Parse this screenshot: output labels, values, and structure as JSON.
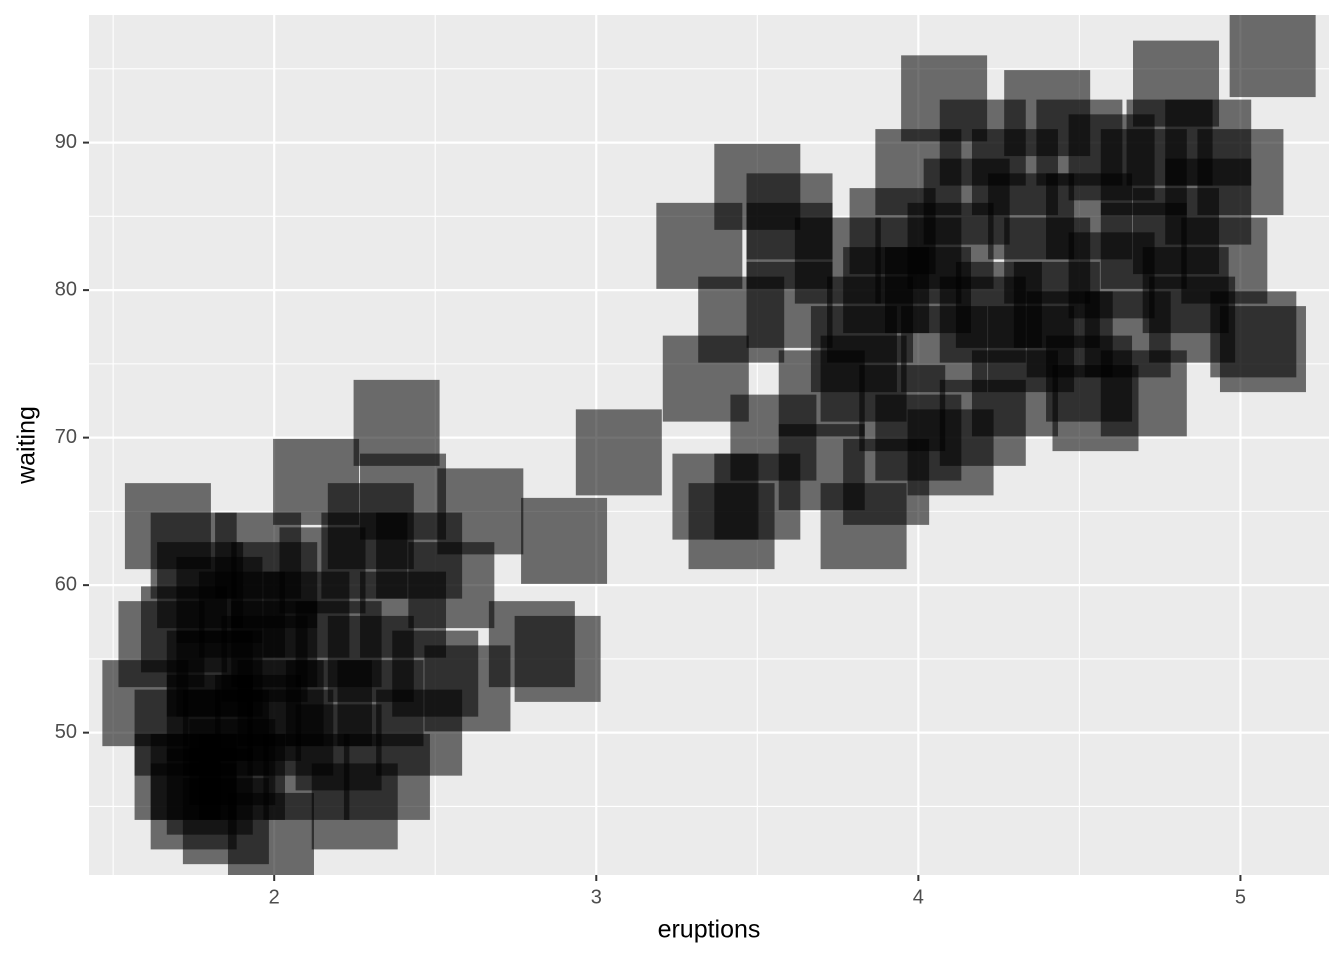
{
  "chart_data": {
    "type": "scatter",
    "x_label": "eruptions",
    "y_label": "waiting",
    "x": [
      1.6,
      1.67,
      1.75,
      1.75,
      1.8,
      1.8,
      1.83,
      1.83,
      1.87,
      1.95,
      1.97,
      2.02,
      2.17,
      2.28,
      1.99,
      2.13,
      2.38,
      2.64,
      2.6,
      1.75,
      1.8,
      1.85,
      1.9,
      1.7,
      1.72,
      1.77,
      1.9,
      2.0,
      2.1,
      2.2,
      2.3,
      2.4,
      2.5,
      2.45,
      2.35,
      2.25,
      2.1,
      2.05,
      2.15,
      2.3,
      2.45,
      2.55,
      1.65,
      1.95,
      2.4,
      2.2,
      1.7,
      2.0,
      1.85,
      2.33,
      3.07,
      2.9,
      2.8,
      2.88,
      3.42,
      3.83,
      3.34,
      3.32,
      3.5,
      3.6,
      3.45,
      3.6,
      3.6,
      3.37,
      3.5,
      3.55,
      3.7,
      3.85,
      3.92,
      4.08,
      4.03,
      3.83,
      4.2,
      4.25,
      4.35,
      4.43,
      4.3,
      4.47,
      4.53,
      4.53,
      4.7,
      4.7,
      4.8,
      4.83,
      4.78,
      4.8,
      5.1,
      4.08,
      4.4,
      5.07,
      5.04,
      4.7,
      4.0,
      4.1,
      4.2,
      3.95,
      4.6,
      4.9,
      5.0,
      4.95,
      4.6,
      4.5,
      4.3,
      4.15,
      4.0,
      3.9,
      3.75,
      3.8,
      4.1,
      4.4,
      4.65,
      4.85,
      4.55,
      4.35,
      4.0,
      4.2,
      4.9,
      3.7,
      3.9
    ],
    "values": [
      52,
      64,
      47,
      62,
      51,
      54,
      54,
      59,
      48,
      51,
      55,
      52,
      52,
      62,
      43,
      67,
      71,
      65,
      53,
      45,
      46,
      44,
      47,
      50,
      57,
      60,
      58,
      60,
      58,
      56,
      55,
      58,
      54,
      50,
      47,
      45,
      47,
      50,
      61,
      64,
      62,
      60,
      56,
      62,
      66,
      49,
      47,
      56,
      50,
      52,
      69,
      63,
      56,
      55,
      64,
      64,
      74,
      83,
      87,
      79,
      78,
      85,
      83,
      66,
      66,
      70,
      73,
      78,
      84,
      76,
      80,
      74,
      78,
      79,
      85,
      79,
      73,
      77,
      85,
      74,
      88,
      83,
      84,
      80,
      90,
      94,
      96,
      93,
      92,
      76,
      77,
      73,
      70,
      69,
      71,
      72,
      81,
      86,
      88,
      82,
      89,
      90,
      88,
      86,
      82,
      80,
      82,
      76,
      83,
      82,
      77,
      78,
      72,
      76,
      88,
      90,
      90,
      68,
      67
    ],
    "color": "#000000",
    "alpha": 0.55,
    "xlim": [
      1.425,
      5.275
    ],
    "ylim": [
      40.35,
      98.65
    ],
    "xticks": [
      2,
      3,
      4,
      5
    ],
    "yticks": [
      50,
      60,
      70,
      80,
      90
    ],
    "x_minor_ticks": [
      1.5,
      2.5,
      3.5,
      4.5
    ],
    "y_minor_ticks": [
      45,
      55,
      65,
      75,
      85,
      95
    ],
    "grid": true
  }
}
